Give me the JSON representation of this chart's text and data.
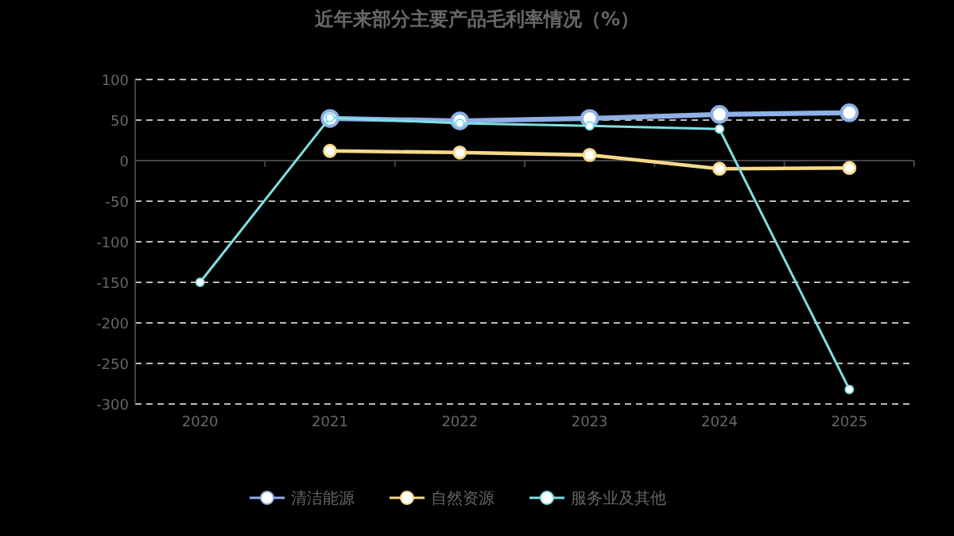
{
  "chart_data": {
    "type": "line",
    "title": "近年来部分主要产品毛利率情况（%）",
    "categories": [
      "2020",
      "2021",
      "2022",
      "2023",
      "2024",
      "2025"
    ],
    "series": [
      {
        "name": "清洁能源",
        "color": "#8fb0e8",
        "values": [
          null,
          52,
          49,
          52,
          57,
          59
        ]
      },
      {
        "name": "自然资源",
        "color": "#f5d98b",
        "values": [
          null,
          12,
          10,
          7,
          -10,
          -9
        ]
      },
      {
        "name": "服务业及其他",
        "color": "#7fdfe3",
        "values": [
          -150,
          53,
          46,
          43,
          39,
          -282
        ]
      }
    ],
    "ylim": [
      -300,
      100
    ],
    "yticks": [
      -300,
      -250,
      -200,
      -150,
      -100,
      -50,
      0,
      50,
      100
    ],
    "grid": "y",
    "legend": "bottom",
    "marker": "circle",
    "line_style": "solid"
  }
}
